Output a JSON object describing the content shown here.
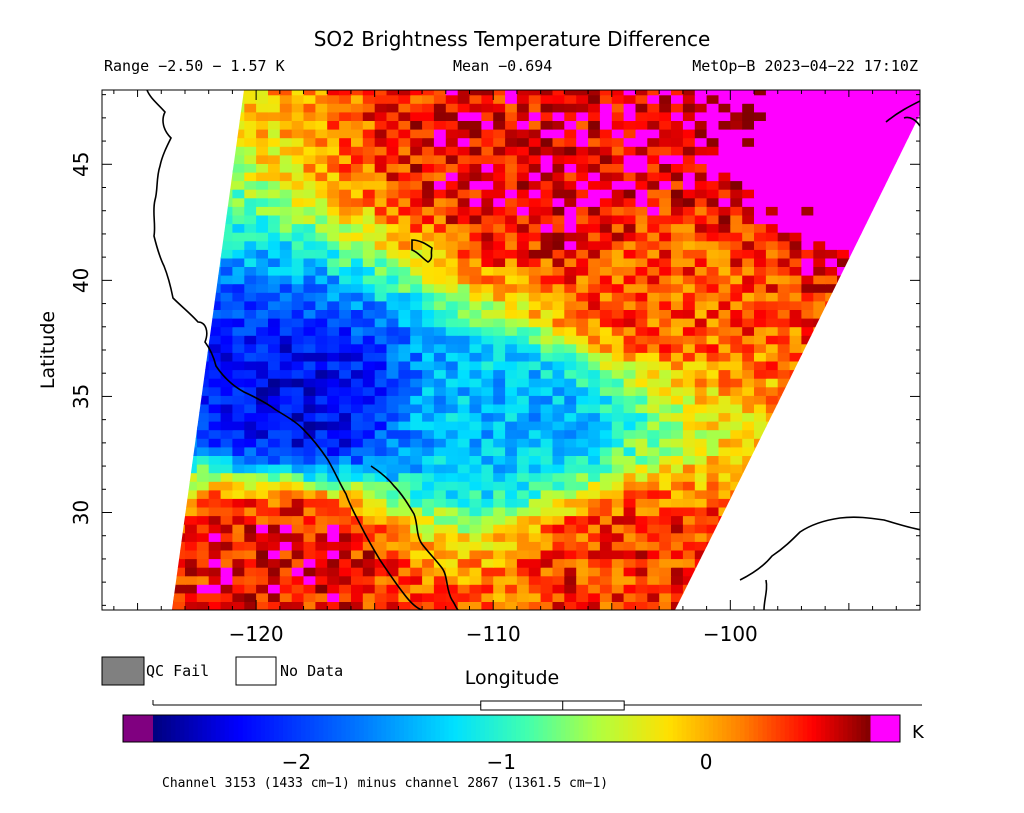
{
  "chart_data": {
    "type": "heatmap",
    "title": "SO2 Brightness Temperature Difference",
    "range_text": "Range −2.50 − 1.57 K",
    "mean_text": "Mean −0.694",
    "source_text": "MetOp−B 2023−04−22 17:10Z",
    "xlabel": "Longitude",
    "ylabel": "Latitude",
    "xlim": [
      -126.5,
      -92.0
    ],
    "ylim": [
      25.8,
      48.2
    ],
    "x_ticks": [
      -120,
      -110,
      -100
    ],
    "x_tick_labels": [
      "−120",
      "−110",
      "−100"
    ],
    "y_ticks": [
      30,
      35,
      40,
      45
    ],
    "y_tick_labels": [
      "30",
      "35",
      "40",
      "45"
    ],
    "value_range": [
      -2.5,
      1.57
    ],
    "mean": -0.694,
    "colorbar": {
      "min": -2.7,
      "max": 0.8,
      "tick_values": [
        -2,
        -1,
        0
      ],
      "tick_labels": [
        "−2",
        "−1",
        "0"
      ],
      "unit": "K",
      "underflow_color": "#800080",
      "overflow_color": "#ff00ff",
      "boxplot": {
        "whisker_low": -2.5,
        "q1": -1.1,
        "median": -0.7,
        "q3": -0.4,
        "whisker_high": 1.57
      }
    },
    "legend": [
      {
        "label": "QC Fail",
        "color": "#808080"
      },
      {
        "label": "No Data",
        "color": "#ffffff"
      }
    ],
    "footnote": "Channel 3153 (1433 cm−1) minus channel 2867 (1361.5 cm−1)",
    "regions": [
      {
        "name": "northwest-positive-band",
        "lon": -106.5,
        "lat": 44.0,
        "value": 0.6
      },
      {
        "name": "northeast-edge-high",
        "lon": -94.5,
        "lat": 45.5,
        "value": 1.2
      },
      {
        "name": "central-positive-band",
        "lon": -103.0,
        "lat": 40.0,
        "value": 0.3
      },
      {
        "name": "southwest-negative-minimum",
        "lon": -118.0,
        "lat": 34.6,
        "value": -2.3
      },
      {
        "name": "central-negative-band",
        "lon": -110.0,
        "lat": 34.0,
        "value": -1.4
      },
      {
        "name": "southwest-positive-area",
        "lon": -119.0,
        "lat": 28.5,
        "value": 0.55
      },
      {
        "name": "southeast-mixed-area",
        "lon": -104.0,
        "lat": 27.5,
        "value": 0.4
      }
    ]
  }
}
